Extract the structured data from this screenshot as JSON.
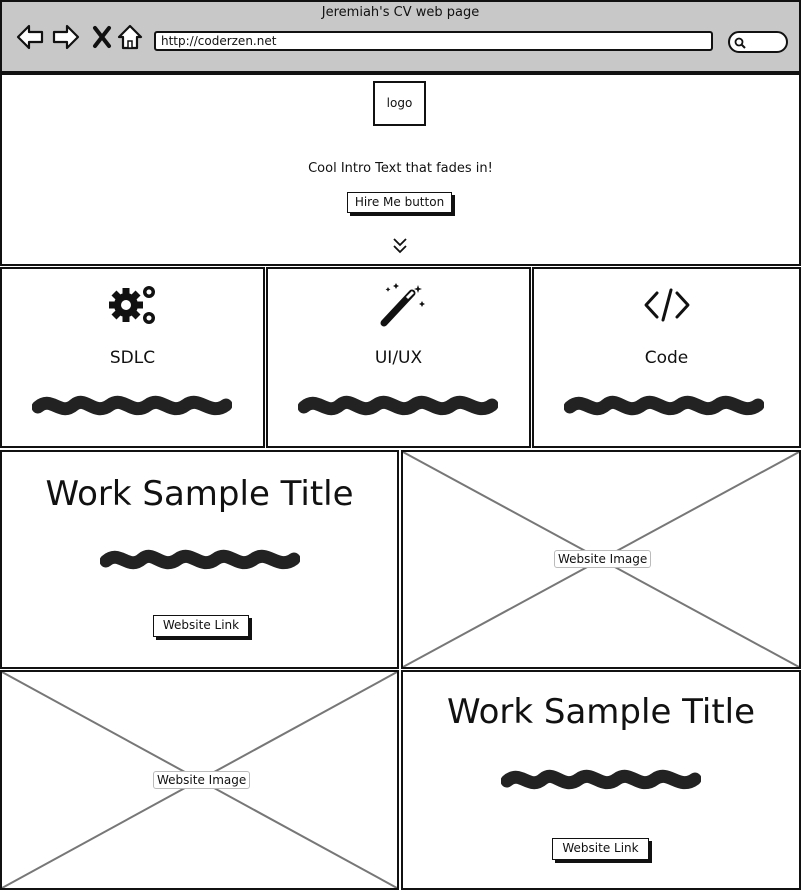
{
  "browser": {
    "window_title": "Jeremiah's CV web page",
    "url": "http://coderzen.net",
    "icons": [
      "back-icon",
      "forward-icon",
      "close-icon",
      "home-icon",
      "search-icon"
    ]
  },
  "hero": {
    "logo_label": "logo",
    "intro_text": "Cool Intro Text that fades in!",
    "hire_button_label": "Hire Me button",
    "scroll_icon": "double-chevron-down-icon"
  },
  "services": [
    {
      "title": "SDLC",
      "icon": "gears-icon"
    },
    {
      "title": "UI/UX",
      "icon": "magic-wand-icon"
    },
    {
      "title": "Code",
      "icon": "code-icon"
    }
  ],
  "work_samples": [
    {
      "title": "Work Sample Title",
      "link_label": "Website Link",
      "image_label": "Website Image"
    },
    {
      "title": "Work Sample Title",
      "link_label": "Website Link",
      "image_label": "Website Image"
    }
  ]
}
